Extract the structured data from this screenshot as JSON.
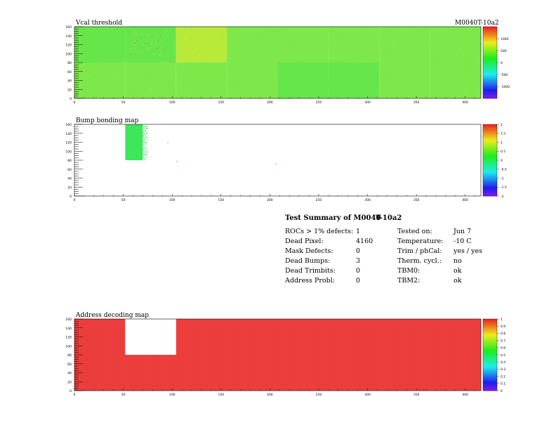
{
  "module_label": "M0040T-10a2",
  "colors": {
    "vcal_base": "#7ee84a",
    "vcal_hot": "#b9ea3a",
    "vcal_cold": "#66e64a",
    "bump_fill": "#3ee65a",
    "address_fill": "#ee3e3e",
    "white": "#ffffff"
  },
  "chart_data": [
    {
      "type": "heatmap",
      "title": "Vcal threshold",
      "xlim": [
        0,
        416
      ],
      "ylim": [
        0,
        160
      ],
      "x_ticks": [
        0,
        50,
        100,
        150,
        200,
        250,
        300,
        350,
        400
      ],
      "x_tick_labels": [
        "0",
        "50",
        "100",
        "150",
        "200",
        "250",
        "300",
        "350",
        "400"
      ],
      "y_ticks": [
        0,
        20,
        40,
        60,
        80,
        100,
        120,
        140,
        160
      ],
      "y_tick_labels": [
        "0",
        "20",
        "40",
        "60",
        "80",
        "100",
        "120",
        "140",
        "160"
      ],
      "palette_labels": [
        "1000",
        "500",
        "0",
        "-500",
        "-1000"
      ],
      "palette_values": [
        1000,
        500,
        0,
        -500,
        -1000
      ],
      "palette_range": [
        -1500,
        1500
      ],
      "roc_grid": {
        "columns": 8,
        "rows": 2,
        "roc_width": 52,
        "roc_height": 80
      },
      "roc_tints": [
        "cold",
        "cold",
        "hot",
        "base",
        "base",
        "base",
        "base",
        "base",
        "base",
        "base",
        "base",
        "base",
        "cold",
        "cold",
        "base",
        "base"
      ]
    },
    {
      "type": "heatmap",
      "title": "Bump bonding map",
      "xlim": [
        0,
        416
      ],
      "ylim": [
        0,
        160
      ],
      "x_ticks": [
        0,
        50,
        100,
        150,
        200,
        250,
        300,
        350,
        400
      ],
      "x_tick_labels": [
        "0",
        "50",
        "100",
        "150",
        "200",
        "250",
        "300",
        "350",
        "400"
      ],
      "y_ticks": [
        0,
        20,
        40,
        60,
        80,
        100,
        120,
        140,
        160
      ],
      "y_tick_labels": [
        "0",
        "20",
        "40",
        "60",
        "80",
        "100",
        "120",
        "140",
        "160"
      ],
      "palette_labels": [
        "2",
        "1.5",
        "1",
        "0.5",
        "0",
        "-0.5",
        "-1",
        "-1.5",
        "-2"
      ],
      "palette_values": [
        2,
        1.5,
        1,
        0.5,
        0,
        -0.5,
        -1,
        -1.5,
        -2
      ],
      "palette_range": [
        -2,
        2
      ],
      "filled_region": {
        "x": [
          52,
          70
        ],
        "y": [
          80,
          160
        ]
      },
      "isolated_points": [
        {
          "x": 95,
          "y": 120
        },
        {
          "x": 104,
          "y": 78
        },
        {
          "x": 206,
          "y": 72
        }
      ]
    },
    {
      "type": "heatmap",
      "title": "Address decoding map",
      "xlim": [
        0,
        416
      ],
      "ylim": [
        0,
        160
      ],
      "x_ticks": [
        0,
        50,
        100,
        150,
        200,
        250,
        300,
        350,
        400
      ],
      "x_tick_labels": [
        "0",
        "50",
        "100",
        "150",
        "200",
        "250",
        "300",
        "350",
        "400"
      ],
      "y_ticks": [
        0,
        20,
        40,
        60,
        80,
        100,
        120,
        140,
        160
      ],
      "y_tick_labels": [
        "0",
        "20",
        "40",
        "60",
        "80",
        "100",
        "120",
        "140",
        "160"
      ],
      "palette_labels": [
        "1",
        "0.9",
        "0.8",
        "0.7",
        "0.6",
        "0.5",
        "0.4",
        "0.3",
        "0.2",
        "0.1",
        "0"
      ],
      "palette_values": [
        1,
        0.9,
        0.8,
        0.7,
        0.6,
        0.5,
        0.4,
        0.3,
        0.2,
        0.1,
        0
      ],
      "palette_range": [
        0,
        1
      ],
      "missing_region": {
        "x": [
          52,
          104
        ],
        "y": [
          80,
          160
        ]
      }
    }
  ],
  "summary": {
    "title_left": "Test Summary of M0040",
    "title_right": "T-10a2",
    "left_rows": [
      {
        "label": "ROCs > 1% defects:",
        "value": "1"
      },
      {
        "label": "Dead Pixel:",
        "value": "4160"
      },
      {
        "label": "Mask Defects:",
        "value": "0"
      },
      {
        "label": "Dead Bumps:",
        "value": "3"
      },
      {
        "label": "Dead Trimbits:",
        "value": "0"
      },
      {
        "label": "Address Probl:",
        "value": "0"
      }
    ],
    "right_rows": [
      {
        "label": "Tested on:",
        "value": "Jun 7"
      },
      {
        "label": "Temperature:",
        "value": "-10 C"
      },
      {
        "label": "Trim / phCal:",
        "value": "yes / yes"
      },
      {
        "label": "Therm. cycl.:",
        "value": "no"
      },
      {
        "label": "TBM0:",
        "value": "ok"
      },
      {
        "label": "TBM2:",
        "value": "ok"
      }
    ]
  }
}
